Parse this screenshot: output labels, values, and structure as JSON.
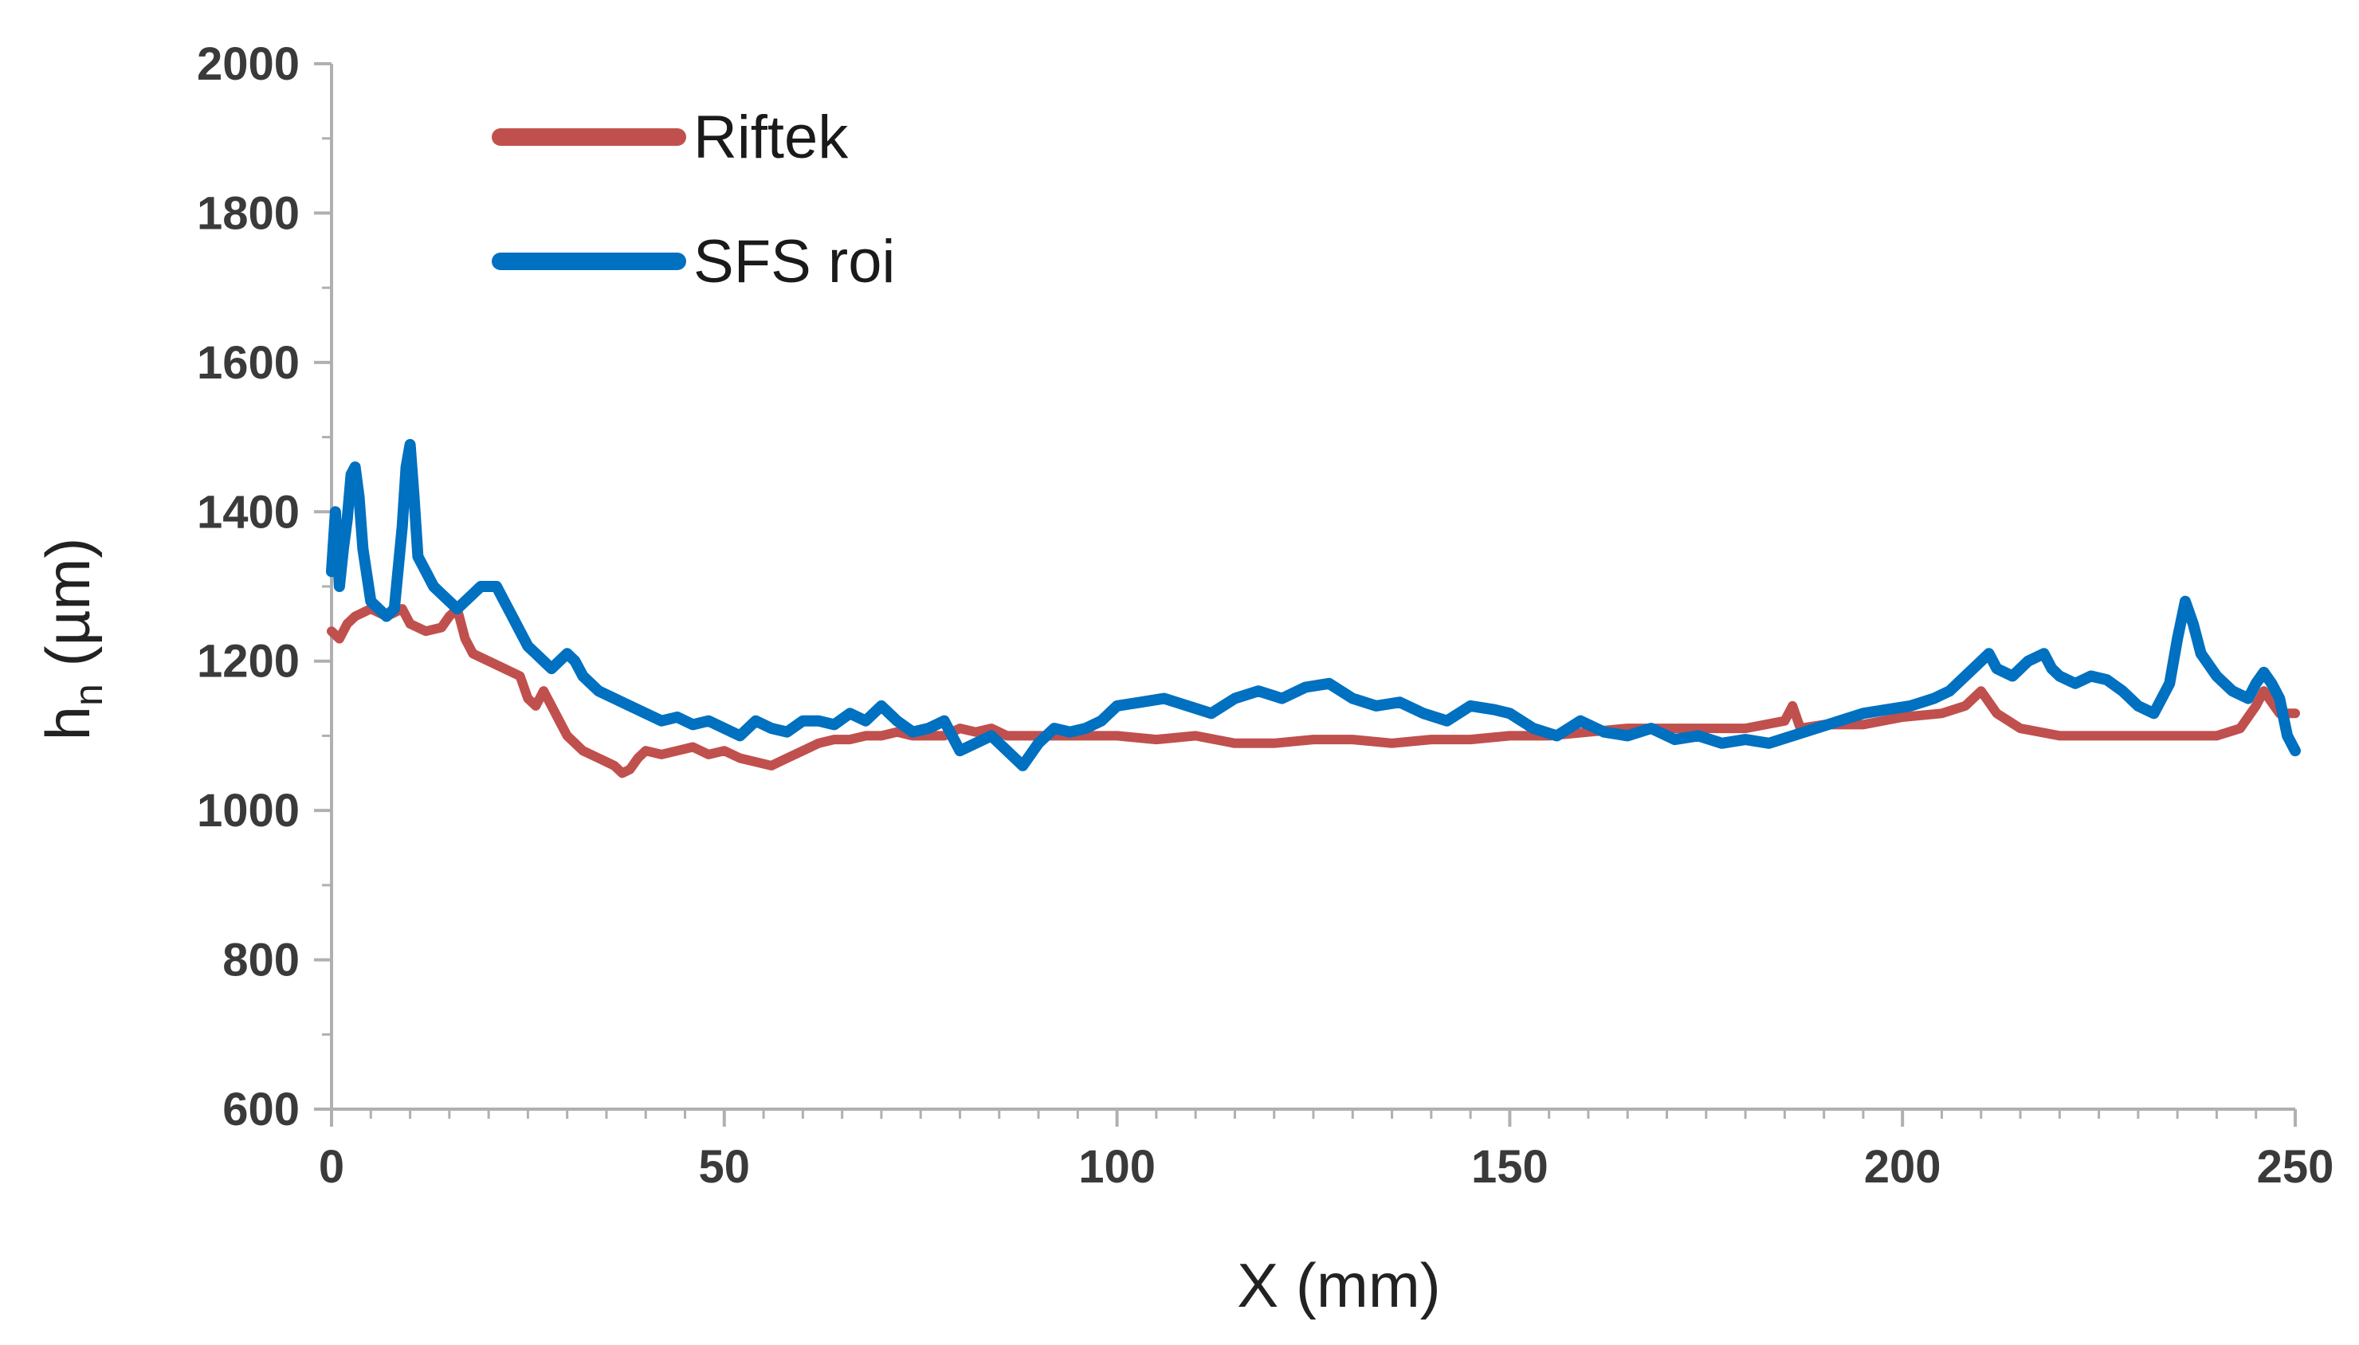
{
  "chart_data": {
    "type": "line",
    "title": "",
    "xlabel": "X (mm)",
    "ylabel_main": "h",
    "ylabel_sub": "n",
    "ylabel_unit": " (µm)",
    "xlim": [
      0,
      250
    ],
    "ylim": [
      600,
      2000
    ],
    "xticks": [
      0,
      50,
      100,
      150,
      200,
      250
    ],
    "yticks": [
      600,
      800,
      1000,
      1200,
      1400,
      1600,
      1800,
      2000
    ],
    "grid": false,
    "legend_position": "top-left",
    "series": [
      {
        "name": "Riftek",
        "color": "#C0504D",
        "x": [
          0,
          1,
          2,
          3,
          5,
          7,
          9,
          10,
          12,
          14,
          15,
          16,
          17,
          18,
          20,
          22,
          24,
          25,
          26,
          27,
          28,
          29,
          30,
          32,
          34,
          36,
          37,
          38,
          39,
          40,
          42,
          44,
          46,
          48,
          50,
          52,
          54,
          56,
          58,
          60,
          62,
          64,
          66,
          68,
          70,
          72,
          74,
          76,
          78,
          80,
          82,
          84,
          86,
          88,
          90,
          95,
          100,
          105,
          110,
          115,
          120,
          125,
          130,
          135,
          140,
          145,
          150,
          155,
          160,
          165,
          170,
          175,
          180,
          185,
          186,
          187,
          190,
          195,
          200,
          205,
          208,
          210,
          212,
          215,
          220,
          225,
          230,
          235,
          240,
          243,
          245,
          246,
          247,
          248,
          250
        ],
        "values": [
          1240,
          1230,
          1250,
          1260,
          1270,
          1260,
          1270,
          1250,
          1240,
          1245,
          1260,
          1270,
          1230,
          1210,
          1200,
          1190,
          1180,
          1150,
          1140,
          1160,
          1140,
          1120,
          1100,
          1080,
          1070,
          1060,
          1050,
          1055,
          1070,
          1080,
          1075,
          1080,
          1085,
          1075,
          1080,
          1070,
          1065,
          1060,
          1070,
          1080,
          1090,
          1095,
          1095,
          1100,
          1100,
          1105,
          1100,
          1100,
          1100,
          1110,
          1105,
          1110,
          1100,
          1100,
          1100,
          1100,
          1100,
          1095,
          1100,
          1090,
          1090,
          1095,
          1095,
          1090,
          1095,
          1095,
          1100,
          1100,
          1105,
          1110,
          1110,
          1110,
          1110,
          1120,
          1140,
          1110,
          1115,
          1115,
          1125,
          1130,
          1140,
          1160,
          1130,
          1110,
          1100,
          1100,
          1100,
          1100,
          1100,
          1110,
          1140,
          1160,
          1145,
          1130,
          1130
        ]
      },
      {
        "name": "SFS roi",
        "color": "#0070C0",
        "x": [
          0,
          0.5,
          1,
          1.5,
          2,
          2.5,
          3,
          3.5,
          4,
          5,
          6,
          7,
          8,
          9,
          9.5,
          10,
          10.5,
          11,
          12,
          13,
          14,
          15,
          16,
          17,
          18,
          19,
          20,
          21,
          22,
          23,
          24,
          25,
          26,
          27,
          28,
          29,
          30,
          31,
          32,
          34,
          36,
          38,
          40,
          42,
          44,
          46,
          48,
          50,
          52,
          54,
          56,
          58,
          60,
          62,
          64,
          66,
          68,
          70,
          72,
          74,
          76,
          78,
          80,
          82,
          84,
          86,
          88,
          90,
          92,
          94,
          96,
          98,
          100,
          103,
          106,
          109,
          112,
          115,
          118,
          121,
          124,
          127,
          130,
          133,
          136,
          139,
          142,
          145,
          148,
          150,
          153,
          156,
          159,
          162,
          165,
          168,
          171,
          174,
          177,
          180,
          183,
          186,
          189,
          192,
          195,
          198,
          201,
          204,
          206,
          208,
          210,
          211,
          212,
          214,
          216,
          218,
          219,
          220,
          222,
          224,
          226,
          228,
          230,
          232,
          234,
          235,
          236,
          237,
          238,
          240,
          242,
          244,
          245,
          246,
          247,
          248,
          249,
          250
        ],
        "values": [
          1320,
          1400,
          1300,
          1350,
          1390,
          1450,
          1460,
          1420,
          1350,
          1280,
          1270,
          1260,
          1270,
          1380,
          1460,
          1490,
          1420,
          1340,
          1320,
          1300,
          1290,
          1280,
          1270,
          1280,
          1290,
          1300,
          1300,
          1300,
          1280,
          1260,
          1240,
          1220,
          1210,
          1200,
          1190,
          1200,
          1210,
          1200,
          1180,
          1160,
          1150,
          1140,
          1130,
          1120,
          1125,
          1115,
          1120,
          1110,
          1100,
          1120,
          1110,
          1105,
          1120,
          1120,
          1115,
          1130,
          1120,
          1140,
          1120,
          1105,
          1110,
          1120,
          1080,
          1090,
          1100,
          1080,
          1060,
          1090,
          1110,
          1105,
          1110,
          1120,
          1140,
          1145,
          1150,
          1140,
          1130,
          1150,
          1160,
          1150,
          1165,
          1170,
          1150,
          1140,
          1145,
          1130,
          1120,
          1140,
          1135,
          1130,
          1110,
          1100,
          1120,
          1105,
          1100,
          1110,
          1095,
          1100,
          1090,
          1095,
          1090,
          1100,
          1110,
          1120,
          1130,
          1135,
          1140,
          1150,
          1160,
          1180,
          1200,
          1210,
          1190,
          1180,
          1200,
          1210,
          1190,
          1180,
          1170,
          1180,
          1175,
          1160,
          1140,
          1130,
          1170,
          1230,
          1280,
          1250,
          1210,
          1180,
          1160,
          1150,
          1170,
          1185,
          1170,
          1150,
          1100,
          1080
        ]
      }
    ]
  }
}
